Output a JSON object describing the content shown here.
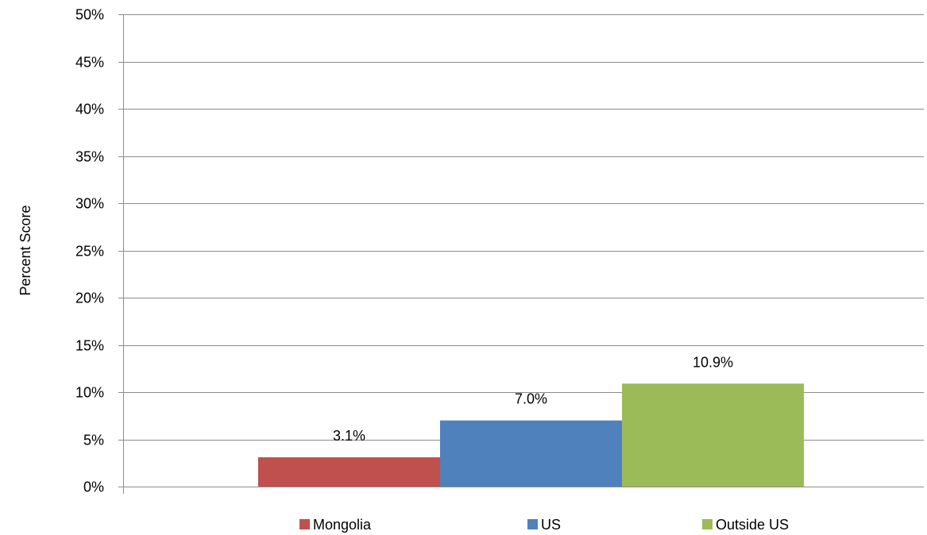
{
  "chart_data": {
    "type": "bar",
    "title": "",
    "xlabel": "",
    "ylabel": "Percent Score",
    "ylim": [
      0,
      50
    ],
    "yticks": [
      0,
      5,
      10,
      15,
      20,
      25,
      30,
      35,
      40,
      45,
      50
    ],
    "ytick_labels": [
      "0%",
      "5%",
      "10%",
      "15%",
      "20%",
      "25%",
      "30%",
      "35%",
      "40%",
      "45%",
      "50%"
    ],
    "grid": true,
    "legend_position": "bottom",
    "series": [
      {
        "name": "Mongolia",
        "value": 3.1,
        "label": "3.1%",
        "color": "#C0504D"
      },
      {
        "name": "US",
        "value": 7.0,
        "label": "7.0%",
        "color": "#4F81BD"
      },
      {
        "name": "Outside US",
        "value": 10.9,
        "label": "10.9%",
        "color": "#9BBB59"
      }
    ]
  }
}
